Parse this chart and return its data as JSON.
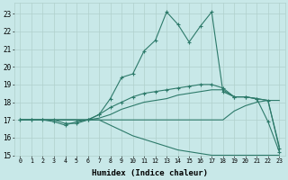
{
  "bg_color": "#c8e8e8",
  "grid_color": "#b0d0cc",
  "line_color": "#2d7a6a",
  "xlabel": "Humidex (Indice chaleur)",
  "xlim": [
    -0.5,
    23.5
  ],
  "ylim": [
    15,
    23.6
  ],
  "yticks": [
    15,
    16,
    17,
    18,
    19,
    20,
    21,
    22,
    23
  ],
  "xticks": [
    0,
    1,
    2,
    3,
    4,
    5,
    6,
    7,
    8,
    9,
    10,
    11,
    12,
    13,
    14,
    15,
    16,
    17,
    18,
    19,
    20,
    21,
    22,
    23
  ],
  "line1_x": [
    0,
    1,
    2,
    3,
    4,
    5,
    6,
    7,
    8,
    9,
    10,
    11,
    12,
    13,
    14,
    15,
    16,
    17,
    18,
    19,
    20,
    21,
    22,
    23
  ],
  "line1_y": [
    17.0,
    17.0,
    17.0,
    17.0,
    16.8,
    16.8,
    17.0,
    17.3,
    18.2,
    19.4,
    19.6,
    20.9,
    21.5,
    23.1,
    22.4,
    21.4,
    22.3,
    23.1,
    18.6,
    18.3,
    18.3,
    18.2,
    16.9,
    15.2
  ],
  "line2_x": [
    0,
    1,
    2,
    3,
    4,
    5,
    6,
    7,
    8,
    9,
    10,
    11,
    12,
    13,
    14,
    15,
    16,
    17,
    18,
    19,
    20,
    21,
    22,
    23
  ],
  "line2_y": [
    17.0,
    17.0,
    17.0,
    16.9,
    16.7,
    16.9,
    17.0,
    17.3,
    17.7,
    18.0,
    18.3,
    18.5,
    18.6,
    18.7,
    18.8,
    18.9,
    19.0,
    19.0,
    18.8,
    18.3,
    18.3,
    18.2,
    18.1,
    15.4
  ],
  "line3_x": [
    0,
    1,
    2,
    3,
    4,
    5,
    6,
    7,
    8,
    9,
    10,
    11,
    12,
    13,
    14,
    15,
    16,
    17,
    18,
    19,
    20,
    21,
    22,
    23
  ],
  "line3_y": [
    17.0,
    17.0,
    17.0,
    17.0,
    17.0,
    17.0,
    17.0,
    17.1,
    17.3,
    17.6,
    17.8,
    18.0,
    18.1,
    18.2,
    18.4,
    18.5,
    18.6,
    18.7,
    18.7,
    18.3,
    18.3,
    18.2,
    18.1,
    15.5
  ],
  "line4_x": [
    0,
    1,
    2,
    3,
    4,
    5,
    6,
    7,
    8,
    9,
    10,
    11,
    12,
    13,
    14,
    15,
    16,
    17,
    18,
    19,
    20,
    21,
    22,
    23
  ],
  "line4_y": [
    17.0,
    17.0,
    17.0,
    17.0,
    17.0,
    17.0,
    17.0,
    17.0,
    17.0,
    17.0,
    17.0,
    17.0,
    17.0,
    17.0,
    17.0,
    17.0,
    17.0,
    17.0,
    17.0,
    17.5,
    17.8,
    18.0,
    18.1,
    18.1
  ],
  "line5_x": [
    0,
    1,
    2,
    3,
    4,
    5,
    6,
    7,
    8,
    9,
    10,
    11,
    12,
    13,
    14,
    15,
    16,
    17,
    18,
    19,
    20,
    21,
    22,
    23
  ],
  "line5_y": [
    17.0,
    17.0,
    17.0,
    17.0,
    17.0,
    17.0,
    17.0,
    17.0,
    16.7,
    16.4,
    16.1,
    15.9,
    15.7,
    15.5,
    15.3,
    15.2,
    15.1,
    15.0,
    15.0,
    15.0,
    15.0,
    15.0,
    15.0,
    15.0
  ]
}
